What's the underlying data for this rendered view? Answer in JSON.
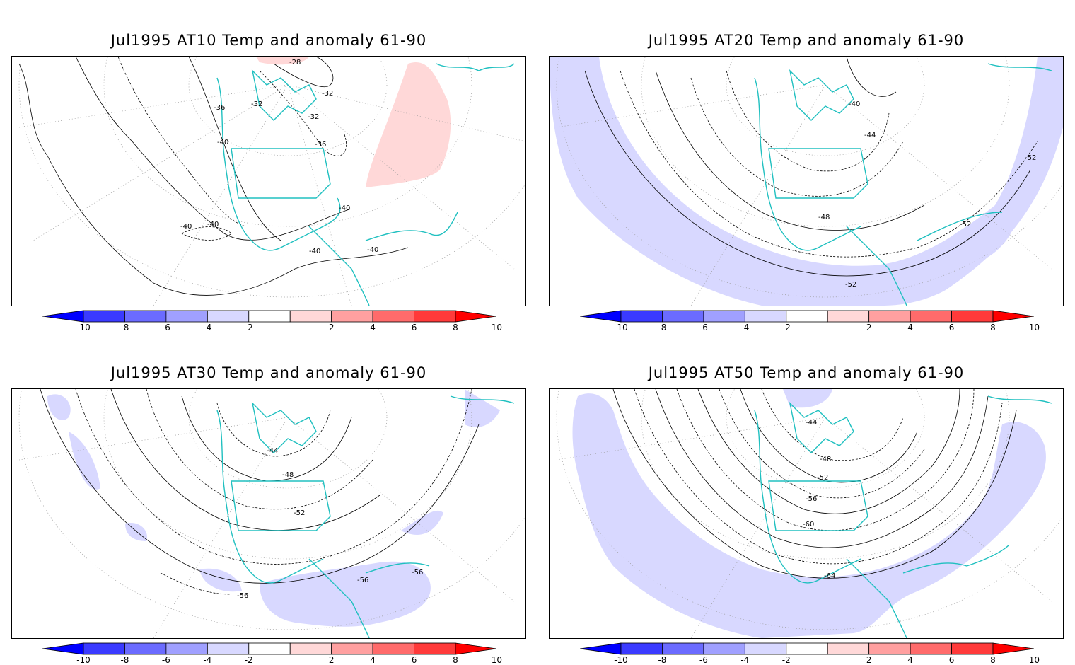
{
  "panels": [
    {
      "id": "at10",
      "title": "Jul1995 AT10 Temp and anomaly 61-90",
      "contour_labels": [
        "-28",
        "-32",
        "-36",
        "-32",
        "-32",
        "-36",
        "-40",
        "-40",
        "-40",
        "-40",
        "-40",
        "-40"
      ],
      "anomaly_fill": "positive"
    },
    {
      "id": "at20",
      "title": "Jul1995 AT20 Temp and anomaly 61-90",
      "contour_labels": [
        "-40",
        "-44",
        "-48",
        "-52",
        "-52",
        "-52"
      ],
      "anomaly_fill": "negative"
    },
    {
      "id": "at30",
      "title": "Jul1995 AT30 Temp and anomaly 61-90",
      "contour_labels": [
        "-44",
        "-48",
        "-52",
        "-56",
        "-56",
        "-56"
      ],
      "anomaly_fill": "negative"
    },
    {
      "id": "at50",
      "title": "Jul1995 AT50 Temp and anomaly 61-90",
      "contour_labels": [
        "-44",
        "-48",
        "-52",
        "-56",
        "-60",
        "-64"
      ],
      "anomaly_fill": "negative"
    }
  ],
  "colorbar": {
    "ticks": [
      "-10",
      "-8",
      "-6",
      "-4",
      "-2",
      "2",
      "4",
      "6",
      "8",
      "10"
    ],
    "colors": [
      "#0000ff",
      "#3a3aff",
      "#6b6bff",
      "#a0a0ff",
      "#d8d8ff",
      "#ffffff",
      "#ffd8d8",
      "#ffa0a0",
      "#ff6b6b",
      "#ff3a3a",
      "#ff0000"
    ]
  },
  "colors": {
    "coastline": "#20c0c0",
    "negative_anomaly": "#d8d8ff",
    "positive_anomaly": "#ffd8d8",
    "contour": "#000000",
    "grid": "#999999"
  }
}
